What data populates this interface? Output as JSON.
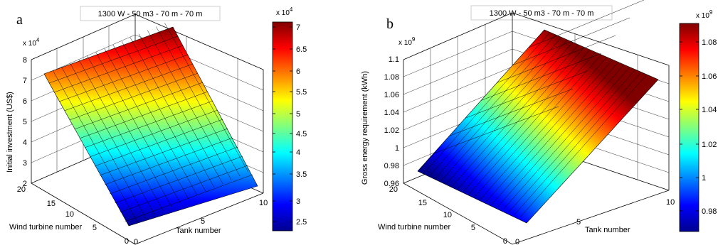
{
  "panels": [
    {
      "letter": "a",
      "title": "1300 W - 50 m3 - 70 m - 70 m",
      "zlabel": "Initial investment (US$)",
      "xlabel": "Tank number",
      "ylabel": "Wind turbine number",
      "zscale": "x 10^4",
      "cbscale": "x 10^4",
      "zticks": [
        "2",
        "3",
        "4",
        "5",
        "6",
        "7",
        "8"
      ],
      "xticks": [
        "0",
        "5",
        "10"
      ],
      "yticks": [
        "0",
        "5",
        "10",
        "15",
        "20"
      ],
      "cbticks": [
        "2.5",
        "3",
        "3.5",
        "4",
        "4.5",
        "5",
        "5.5",
        "6",
        "6.5",
        "7"
      ]
    },
    {
      "letter": "b",
      "title": "1300 W - 50 m3 - 70 m - 70 m",
      "zlabel": "Gross energy requirement (kWh)",
      "xlabel": "Tank number",
      "ylabel": "Wind turbine number",
      "zscale": "x 10^9",
      "cbscale": "x 10^9",
      "zticks": [
        "0.96",
        "0.98",
        "1",
        "1.02",
        "1.04",
        "1.06",
        "1.08",
        "1.1"
      ],
      "xticks": [
        "0",
        "5",
        "10"
      ],
      "yticks": [
        "0",
        "5",
        "10",
        "15",
        "20"
      ],
      "cbticks": [
        "0.98",
        "1",
        "1.02",
        "1.04",
        "1.06",
        "1.08"
      ]
    }
  ],
  "chart_data": [
    {
      "type": "surface",
      "title": "1300 W - 50 m3 - 70 m - 70 m",
      "xlabel": "Tank number",
      "ylabel": "Wind turbine number",
      "zlabel": "Initial investment (US$)",
      "xlim": [
        0,
        10
      ],
      "ylim": [
        0,
        20
      ],
      "zlim": [
        20000,
        80000
      ],
      "clim": [
        22000,
        72000
      ],
      "colormap": "jet",
      "grid": true,
      "colorbar": "right",
      "x": [
        1,
        10
      ],
      "y": [
        1,
        20
      ],
      "z": [
        [
          22000,
          23500
        ],
        [
          70000,
          72000
        ]
      ]
    },
    {
      "type": "surface",
      "title": "1300 W - 50 m3 - 70 m - 70 m",
      "xlabel": "Tank number",
      "ylabel": "Wind turbine number",
      "zlabel": "Gross energy requirement (kWh)",
      "xlim": [
        0,
        10
      ],
      "ylim": [
        0,
        20
      ],
      "zlim": [
        960000000,
        1100000000
      ],
      "clim": [
        966000000,
        1092000000
      ],
      "colormap": "jet",
      "grid": true,
      "colorbar": "right",
      "x": [
        1,
        10
      ],
      "y": [
        1,
        20
      ],
      "z": [
        [
          966000000,
          968000000
        ],
        [
          1090000000,
          1092000000
        ]
      ]
    }
  ]
}
